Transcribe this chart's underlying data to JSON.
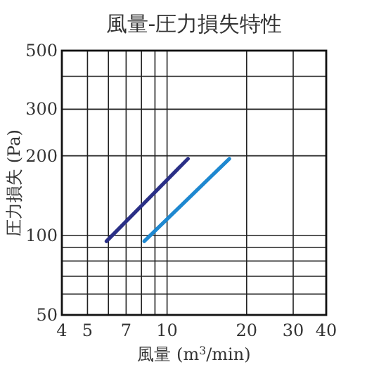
{
  "chart_data": {
    "type": "line",
    "title": "風量-圧力損失特性",
    "xlabel": "風量 (m$^{3}$/min)",
    "ylabel": "圧力損失 (Pa)",
    "series": [
      {
        "color": "#1e88d0",
        "x": [
          8.2,
          17.2
        ],
        "values": [
          95,
          195
        ]
      },
      {
        "color": "#2a2f86",
        "x": [
          5.9,
          12
        ],
        "values": [
          95,
          195
        ]
      }
    ],
    "log": "xy",
    "xlim": [
      4,
      40
    ],
    "ylim": [
      50,
      500
    ],
    "xticks": [
      4,
      5,
      7,
      10,
      20,
      30,
      40
    ],
    "yticks": [
      50,
      100,
      200,
      300,
      500
    ],
    "grid": true,
    "marker": "none",
    "line_style": "solid"
  }
}
